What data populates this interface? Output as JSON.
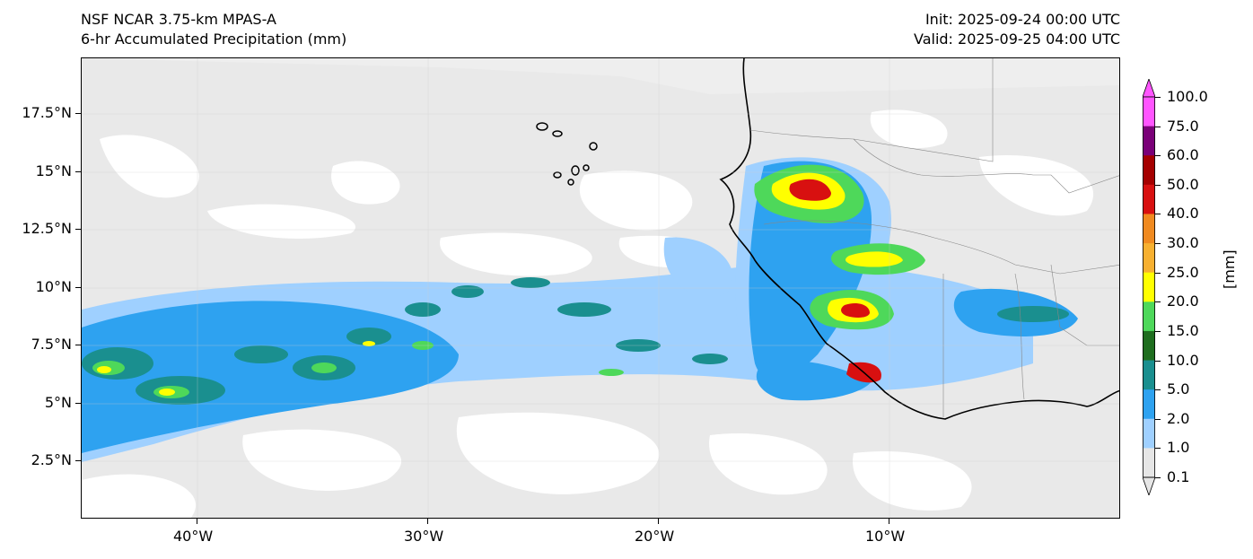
{
  "header": {
    "title_line1": "NSF NCAR 3.75-km MPAS-A",
    "title_line2": "6-hr Accumulated Precipitation (mm)",
    "init": "Init: 2025-09-24 00:00 UTC",
    "valid": "Valid: 2025-09-25 04:00 UTC"
  },
  "axes": {
    "lon_ticks": [
      "40°W",
      "30°W",
      "20°W",
      "10°W"
    ],
    "lat_ticks": [
      "17.5°N",
      "15°N",
      "12.5°N",
      "10°N",
      "7.5°N",
      "5°N",
      "2.5°N"
    ]
  },
  "colorbar": {
    "unit": "[mm]",
    "levels": [
      "100.0",
      "75.0",
      "60.0",
      "50.0",
      "40.0",
      "30.0",
      "25.0",
      "20.0",
      "15.0",
      "10.0",
      "5.0",
      "2.0",
      "1.0",
      "0.1"
    ],
    "colors": [
      "#ff55ff",
      "#7a0078",
      "#a50000",
      "#d81010",
      "#f08a20",
      "#f7b030",
      "#ffff00",
      "#4ed85a",
      "#1f6e1f",
      "#1a8f8f",
      "#2ea2f0",
      "#9fd0ff",
      "#e6e6e6"
    ]
  }
}
